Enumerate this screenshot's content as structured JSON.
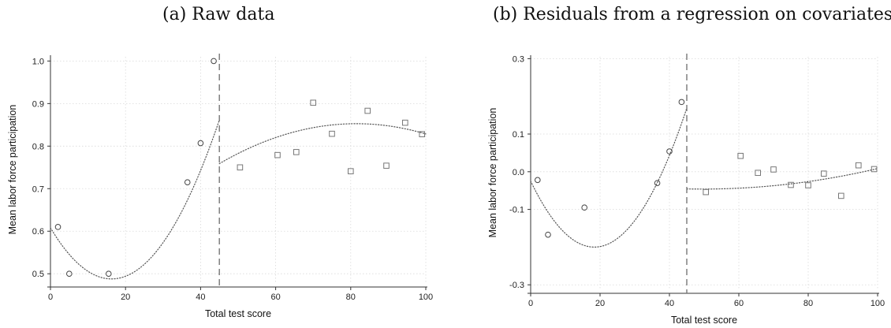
{
  "chart_data": [
    {
      "type": "scatter",
      "title": "(a) Raw data",
      "xlabel": "Total test score",
      "ylabel": "Mean labor force participation",
      "xlim": [
        0,
        100
      ],
      "ylim": [
        0.48,
        1.01
      ],
      "xticks": [
        0,
        20,
        40,
        60,
        80,
        100
      ],
      "yticks": [
        0.5,
        0.6,
        0.7,
        0.8,
        0.9,
        1.0
      ],
      "ytick_labels": [
        "0.5",
        "0.6",
        "0.7",
        "0.8",
        "0.9",
        "1.0"
      ],
      "grid": true,
      "cutoff": 45,
      "series": [
        {
          "marker": "circle",
          "points": [
            [
              2,
              0.61
            ],
            [
              5,
              0.5
            ],
            [
              15.5,
              0.5
            ],
            [
              36.5,
              0.715
            ],
            [
              40,
              0.807
            ],
            [
              43.5,
              1.0
            ]
          ]
        },
        {
          "marker": "square",
          "points": [
            [
              50.5,
              0.75
            ],
            [
              60.5,
              0.779
            ],
            [
              65.5,
              0.786
            ],
            [
              70,
              0.902
            ],
            [
              75,
              0.829
            ],
            [
              80,
              0.741
            ],
            [
              84.5,
              0.883
            ],
            [
              89.5,
              0.754
            ],
            [
              94.5,
              0.855
            ],
            [
              99,
              0.828
            ]
          ]
        }
      ],
      "fits": [
        {
          "x_range": [
            0,
            45
          ],
          "coefficients": [
            0.608,
            -0.01476,
            0.0004532
          ]
        },
        {
          "x_range": [
            45,
            100
          ],
          "coefficients": [
            0.3844,
            0.011492,
            -7.05e-05
          ]
        }
      ]
    },
    {
      "type": "scatter",
      "title": "(b) Residuals from a regression on covariates",
      "xlabel": "Total test score",
      "ylabel": "Mean labor force participation",
      "xlim": [
        0,
        100
      ],
      "ylim": [
        -0.31,
        0.305
      ],
      "xticks": [
        0,
        20,
        40,
        60,
        80,
        100
      ],
      "yticks": [
        -0.3,
        -0.1,
        0.0,
        0.1,
        0.3
      ],
      "ytick_labels": [
        "-0.3",
        "-0.1",
        "0.0",
        "0.1",
        "0.3"
      ],
      "grid": true,
      "cutoff": 45,
      "series": [
        {
          "marker": "circle",
          "points": [
            [
              2,
              -0.022
            ],
            [
              5,
              -0.167
            ],
            [
              15.5,
              -0.095
            ],
            [
              36.5,
              -0.03
            ],
            [
              40,
              0.054
            ],
            [
              43.5,
              0.185
            ]
          ]
        },
        {
          "marker": "square",
          "points": [
            [
              50.5,
              -0.054
            ],
            [
              60.5,
              0.042
            ],
            [
              65.5,
              -0.003
            ],
            [
              70,
              0.006
            ],
            [
              75,
              -0.035
            ],
            [
              80,
              -0.036
            ],
            [
              84.5,
              -0.005
            ],
            [
              89.5,
              -0.064
            ],
            [
              94.5,
              0.017
            ],
            [
              99,
              0.007
            ]
          ]
        }
      ],
      "fits": [
        {
          "x_range": [
            0,
            45
          ],
          "coefficients": [
            -0.025,
            -0.019063,
            0.00051921
          ]
        },
        {
          "x_range": [
            45,
            100
          ],
          "coefficients": [
            0.00632,
            -0.002115,
            2.136e-05
          ]
        }
      ]
    }
  ]
}
